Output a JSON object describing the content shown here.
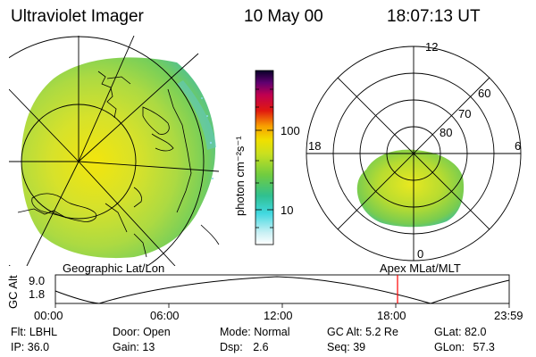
{
  "header": {
    "instrument": "Ultraviolet Imager",
    "date": "10 May 00",
    "time": "18:07:13 UT"
  },
  "colorbar": {
    "unit_label": "photon cm⁻²s⁻¹",
    "ticks": [
      "100",
      "10"
    ],
    "scale": "log",
    "colors": [
      "#ffffff",
      "#c8f0f4",
      "#40d8e0",
      "#30c090",
      "#70cc40",
      "#c8e020",
      "#f0e000",
      "#f8a000",
      "#e01810",
      "#c00050",
      "#600070",
      "#080028"
    ]
  },
  "polar_plot": {
    "mlt_labels": {
      "top": "12",
      "left": "18",
      "right": "6",
      "bottom": "0"
    },
    "mlat_labels": [
      "60",
      "70",
      "80"
    ]
  },
  "panel_labels": {
    "left": "Geographic Lat/Lon",
    "right": "Apex MLat/MLT"
  },
  "altitude_plot": {
    "axis_label": "GC Alt",
    "y_ticks": [
      "9.0",
      "1.8"
    ],
    "x_ticks": [
      "00:00",
      "06:00",
      "12:00",
      "18:00",
      "23:59"
    ],
    "marker_time": "18:07",
    "marker_color": "#ff0000"
  },
  "footer": {
    "row1": [
      {
        "label": "Flt:",
        "value": "LBHL"
      },
      {
        "label": "Door:",
        "value": "Open"
      },
      {
        "label": "Mode:",
        "value": "Normal"
      },
      {
        "label": "GC Alt:",
        "value": "5.2 Re"
      },
      {
        "label": "GLat:",
        "value": "82.0"
      }
    ],
    "row2": [
      {
        "label": "IP:",
        "value": "36.0"
      },
      {
        "label": "Gain:",
        "value": "13"
      },
      {
        "label": "Dsp:",
        "value": "2.6"
      },
      {
        "label": "Seq:",
        "value": "39"
      },
      {
        "label": "GLon:",
        "value": "57.3"
      }
    ]
  }
}
